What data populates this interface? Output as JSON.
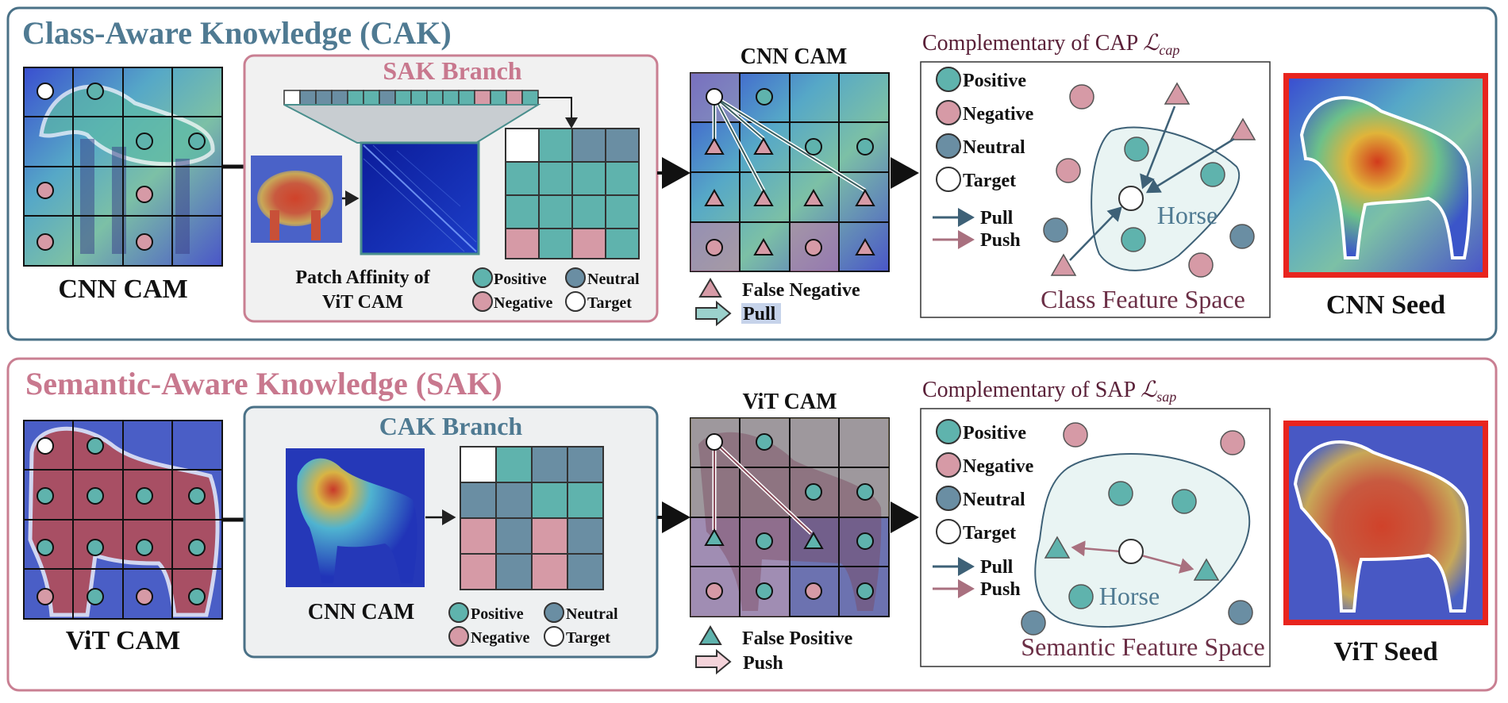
{
  "colors": {
    "positive": "#5fb3ad",
    "negative": "#d69aa6",
    "neutral": "#6a8ea3",
    "target": "#ffffff",
    "cak_border": "#4a7187",
    "sak_border": "#c97f92",
    "cak_title": "#4f7a92",
    "sak_title": "#c8788e",
    "seed_border": "#e8241e",
    "pull_arrow": "#3e6177",
    "push_arrow": "#a9707f",
    "feature_space_text": "#6b2f46"
  },
  "top": {
    "title": "Class-Aware Knowledge (CAK)",
    "cam_label": "CNN CAM",
    "branch_title": "SAK Branch",
    "affinity_label_line1": "Patch Affinity of",
    "affinity_label_line2": "ViT CAM",
    "legend_small": [
      "Positive",
      "Neutral",
      "Negative",
      "Target"
    ],
    "mid_cam_title": "CNN CAM",
    "false_label": "False Negative",
    "arrow_label": "Pull",
    "comp_title": "Complementary of CAP ",
    "comp_loss": "ℒ",
    "comp_sub": "cap",
    "legend": [
      "Positive",
      "Negative",
      "Neutral",
      "Target",
      "Pull",
      "Push"
    ],
    "class_word": "Horse",
    "space_label": "Class Feature Space",
    "seed_label": "CNN Seed"
  },
  "bottom": {
    "title": "Semantic-Aware Knowledge (SAK)",
    "cam_label": "ViT CAM",
    "branch_title": "CAK Branch",
    "branch_cam_label": "CNN CAM",
    "legend_small": [
      "Positive",
      "Neutral",
      "Negative",
      "Target"
    ],
    "mid_cam_title": "ViT CAM",
    "false_label": "False Positive",
    "arrow_label": "Push",
    "comp_title": "Complementary of SAP ",
    "comp_loss": "ℒ",
    "comp_sub": "sap",
    "legend": [
      "Positive",
      "Negative",
      "Neutral",
      "Target",
      "Pull",
      "Push"
    ],
    "class_word": "Horse",
    "space_label": "Semantic Feature Space",
    "seed_label": "ViT Seed"
  }
}
